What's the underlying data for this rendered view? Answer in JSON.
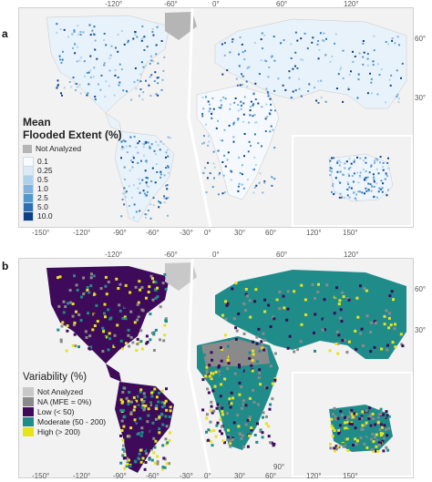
{
  "panels": {
    "a": {
      "label": "a",
      "legend": {
        "title_line1": "Mean",
        "title_line2": "Flooded Extent (%)",
        "not_analyzed": "Not Analyzed",
        "not_analyzed_color": "#b5b5b5",
        "classes": [
          {
            "label": "0.1",
            "color": "#f7fbff"
          },
          {
            "label": "0.25",
            "color": "#d9e9f6"
          },
          {
            "label": "0.5",
            "color": "#aed1ea"
          },
          {
            "label": "1.0",
            "color": "#7fb3dd"
          },
          {
            "label": "2.5",
            "color": "#5097cc"
          },
          {
            "label": "5.0",
            "color": "#2d6fb0"
          },
          {
            "label": "10.0",
            "color": "#0c3f86"
          }
        ]
      }
    },
    "b": {
      "label": "b",
      "legend": {
        "title": "Variability (%)",
        "classes": [
          {
            "label": "Not Analyzed",
            "color": "#c8c8c8"
          },
          {
            "label": "NA (MFE = 0%)",
            "color": "#8a8a8a"
          },
          {
            "label": "Low (< 50)",
            "color": "#3d0b5a"
          },
          {
            "label": "Moderate (50 - 200)",
            "color": "#1f8c8a"
          },
          {
            "label": "High (> 200)",
            "color": "#e6e31e"
          }
        ]
      }
    }
  },
  "ticks": {
    "top_americas": [
      "-120°",
      "-60°"
    ],
    "top_eurasia": [
      "0°",
      "60°",
      "120°"
    ],
    "right": [
      "60°",
      "30°"
    ],
    "bottom_americas": [
      "-150°",
      "-120°",
      "-90°",
      "-60°",
      "-30°"
    ],
    "bottom_eurasia": [
      "0°",
      "30°",
      "60°",
      "90°"
    ],
    "bottom_oceania": [
      "120°",
      "150°"
    ]
  },
  "colors": {
    "ocean": "#f2f2f2",
    "land_a": "#eef5fc",
    "land_b": "#3d0b5a",
    "moderate": "#1f8c8a",
    "high": "#e6e31e",
    "not_analyzed": "#c8c8c8"
  }
}
